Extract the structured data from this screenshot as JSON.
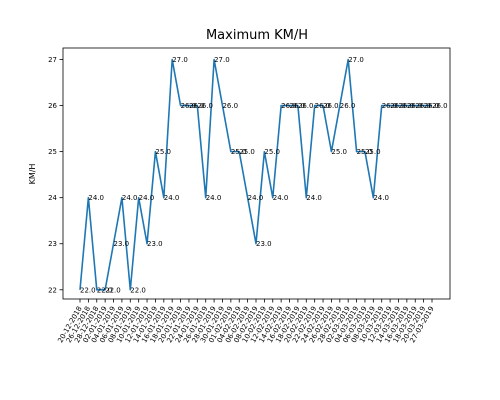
{
  "chart_data": {
    "type": "line",
    "title": "Maximum KM/H",
    "xlabel": "",
    "ylabel": "KM/H",
    "ylim": [
      21.8,
      27.25
    ],
    "yticks": [
      "22",
      "23",
      "24",
      "25",
      "26",
      "27"
    ],
    "grid": false,
    "line_color": "#1f77b4",
    "categories": [
      "20-12-2018",
      "26-12-2018",
      "28-12-2018",
      "02-01-2019",
      "04-01-2019",
      "06-01-2019",
      "08-01-2019",
      "10-01-2019",
      "12-01-2019",
      "14-01-2019",
      "16-01-2019",
      "18-01-2019",
      "20-01-2019",
      "22-01-2019",
      "24-01-2019",
      "26-01-2019",
      "28-01-2019",
      "30-01-2019",
      "01-02-2019",
      "04-02-2019",
      "06-02-2019",
      "08-02-2019",
      "10-02-2019",
      "12-02-2019",
      "14-02-2019",
      "16-02-2019",
      "18-02-2019",
      "20-02-2019",
      "22-02-2019",
      "24-02-2019",
      "26-02-2019",
      "28-02-2019",
      "02-03-2019",
      "04-03-2019",
      "06-03-2019",
      "08-03-2019",
      "10-03-2019",
      "12-03-2019",
      "14-03-2019",
      "16-03-2019",
      "18-03-2019",
      "20-03-2019",
      "27-03-2019"
    ],
    "xtick_labels": [
      "20-12-2018",
      "26-12-2018",
      "28-12-2018",
      "02-01-2019",
      "04-01-2019",
      "06-01-2019",
      "08-01-2019",
      "10-01-2019",
      "12-01-2019",
      "14-01-2019",
      "16-01-2019",
      "18-01-2019",
      "20-01-2019",
      "22-01-2019",
      "24-01-2019",
      "26-01-2019",
      "28-01-2019",
      "30-01-2019",
      "01-02-2019",
      "04-02-2019",
      "06-02-2019",
      "08-02-2019",
      "10-02-2019",
      "12-02-2019",
      "14-02-2019",
      "16-02-2019",
      "18-02-2019",
      "20-02-2019",
      "22-02-2019",
      "24-02-2019",
      "26-02-2019",
      "28-02-2019",
      "02-03-2019",
      "04-03-2019",
      "06-03-2019",
      "08-03-2019",
      "10-03-2019",
      "12-03-2019",
      "14-03-2019",
      "16-03-2019",
      "18-03-2019",
      "20-03-2019",
      "27-03-2019"
    ],
    "values": [
      22.0,
      24.0,
      22.0,
      22.0,
      23.0,
      24.0,
      22.0,
      24.0,
      23.0,
      25.0,
      24.0,
      27.0,
      26.0,
      26.0,
      26.0,
      24.0,
      27.0,
      26.0,
      25.0,
      25.0,
      24.0,
      23.0,
      25.0,
      24.0,
      26.0,
      26.0,
      26.0,
      24.0,
      26.0,
      26.0,
      25.0,
      26.0,
      27.0,
      25.0,
      25.0,
      24.0,
      26.0,
      26.0,
      26.0,
      26.0,
      26.0,
      26.0,
      26.0
    ],
    "data_labels": [
      "22.0",
      "24.0",
      "22.0",
      "22.0",
      "23.0",
      "24.0",
      "22.0",
      "24.0",
      "23.0",
      "25.0",
      "24.0",
      "27.0",
      "26.0",
      "26.0",
      "26.0",
      "24.0",
      "27.0",
      "26.0",
      "25.0",
      "25.0",
      "24.0",
      "23.0",
      "25.0",
      "24.0",
      "26.0",
      "26.0",
      "26.0",
      "24.0",
      "26.0",
      "26.0",
      "25.0",
      "26.0",
      "27.0",
      "25.0",
      "25.0",
      "24.0",
      "26.0",
      "26.0",
      "26.0",
      "26.0",
      "26.0",
      "26.0",
      "26.0"
    ]
  }
}
